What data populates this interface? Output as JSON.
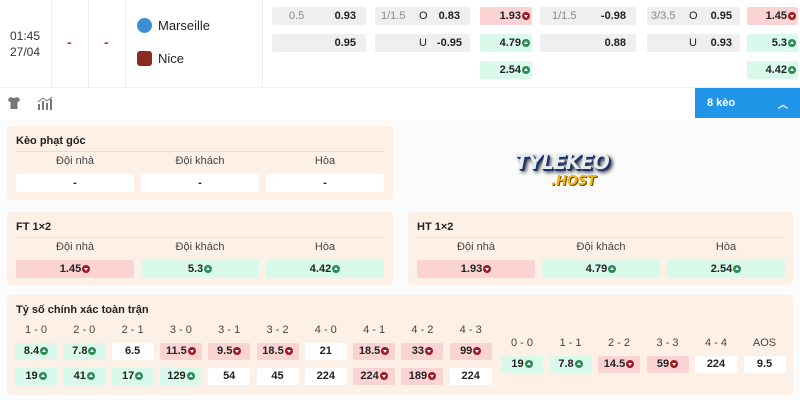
{
  "match": {
    "time": "01:45",
    "date": "27/04",
    "score_home": "-",
    "score_away": "-",
    "home": "Marseille",
    "away": "Nice"
  },
  "odds": {
    "ft_hdp": {
      "line": "0.5",
      "home": "0.93",
      "away": "0.95"
    },
    "ft_ou": {
      "line": "1/1.5",
      "over_label": "O",
      "over": "0.83",
      "under_label": "U",
      "under": "-0.95"
    },
    "ht_1x2": [
      {
        "v": "1.93",
        "c": "red",
        "t": "down"
      },
      {
        "v": "4.79",
        "c": "green",
        "t": "up"
      },
      {
        "v": "2.54",
        "c": "green",
        "t": "up"
      }
    ],
    "ht_hdp": {
      "line": "1/1.5",
      "home": "-0.98",
      "away": "0.88"
    },
    "ht_ou": {
      "line": "3/3.5",
      "over_label": "O",
      "over": "0.95",
      "under_label": "U",
      "under": "0.93"
    },
    "ft_1x2": [
      {
        "v": "1.45",
        "c": "red",
        "t": "down"
      },
      {
        "v": "5.3",
        "c": "green",
        "t": "up"
      },
      {
        "v": "4.42",
        "c": "green",
        "t": "up"
      }
    ]
  },
  "toolbar": {
    "keo_label": "8 kèo",
    "icons": [
      "shirt-icon",
      "stats-icon",
      "chevron-up-icon"
    ]
  },
  "logo": {
    "text": "TYLEKEO .HOST"
  },
  "panels": {
    "corner": {
      "title": "Kèo phạt góc",
      "cols": [
        {
          "h": "Đội nhà",
          "v": "-",
          "c": "white",
          "t": ""
        },
        {
          "h": "Đội khách",
          "v": "-",
          "c": "white",
          "t": ""
        },
        {
          "h": "Hòa",
          "v": "-",
          "c": "white",
          "t": ""
        }
      ]
    },
    "ft": {
      "title": "FT 1×2",
      "cols": [
        {
          "h": "Đội nhà",
          "v": "1.45",
          "c": "red",
          "t": "down"
        },
        {
          "h": "Đội khách",
          "v": "5.3",
          "c": "green",
          "t": "up"
        },
        {
          "h": "Hòa",
          "v": "4.42",
          "c": "green",
          "t": "up"
        }
      ]
    },
    "ht": {
      "title": "HT 1×2",
      "cols": [
        {
          "h": "Đội nhà",
          "v": "1.93",
          "c": "red",
          "t": "down"
        },
        {
          "h": "Đội khách",
          "v": "4.79",
          "c": "green",
          "t": "up"
        },
        {
          "h": "Hòa",
          "v": "2.54",
          "c": "green",
          "t": "up"
        }
      ]
    }
  },
  "correct_score": {
    "title": "Tỷ số chính xác toàn trận",
    "home": [
      {
        "h": "1 - 0",
        "a": {
          "v": "8.4",
          "c": "green",
          "t": "up"
        },
        "b": {
          "v": "19",
          "c": "green",
          "t": "up"
        }
      },
      {
        "h": "2 - 0",
        "a": {
          "v": "7.8",
          "c": "green",
          "t": "up"
        },
        "b": {
          "v": "41",
          "c": "green",
          "t": "up"
        }
      },
      {
        "h": "2 - 1",
        "a": {
          "v": "6.5",
          "c": "white",
          "t": ""
        },
        "b": {
          "v": "17",
          "c": "green",
          "t": "up"
        }
      },
      {
        "h": "3 - 0",
        "a": {
          "v": "11.5",
          "c": "red",
          "t": "down"
        },
        "b": {
          "v": "129",
          "c": "green",
          "t": "up"
        }
      },
      {
        "h": "3 - 1",
        "a": {
          "v": "9.5",
          "c": "red",
          "t": "down"
        },
        "b": {
          "v": "54",
          "c": "white",
          "t": ""
        }
      },
      {
        "h": "3 - 2",
        "a": {
          "v": "18.5",
          "c": "red",
          "t": "down"
        },
        "b": {
          "v": "45",
          "c": "white",
          "t": ""
        }
      },
      {
        "h": "4 - 0",
        "a": {
          "v": "21",
          "c": "white",
          "t": ""
        },
        "b": {
          "v": "224",
          "c": "white",
          "t": ""
        }
      },
      {
        "h": "4 - 1",
        "a": {
          "v": "18.5",
          "c": "red",
          "t": "down"
        },
        "b": {
          "v": "224",
          "c": "red",
          "t": "down"
        }
      },
      {
        "h": "4 - 2",
        "a": {
          "v": "33",
          "c": "red",
          "t": "down"
        },
        "b": {
          "v": "189",
          "c": "red",
          "t": "down"
        }
      },
      {
        "h": "4 - 3",
        "a": {
          "v": "99",
          "c": "red",
          "t": "down"
        },
        "b": {
          "v": "224",
          "c": "white",
          "t": ""
        }
      }
    ],
    "draw": [
      {
        "h": "0 - 0",
        "a": {
          "v": "19",
          "c": "green",
          "t": "up"
        }
      },
      {
        "h": "1 - 1",
        "a": {
          "v": "7.8",
          "c": "green",
          "t": "up"
        }
      },
      {
        "h": "2 - 2",
        "a": {
          "v": "14.5",
          "c": "red",
          "t": "down"
        }
      },
      {
        "h": "3 - 3",
        "a": {
          "v": "59",
          "c": "red",
          "t": "down"
        }
      },
      {
        "h": "4 - 4",
        "a": {
          "v": "224",
          "c": "white",
          "t": ""
        }
      },
      {
        "h": "AOS",
        "a": {
          "v": "9.5",
          "c": "white",
          "t": ""
        }
      }
    ]
  },
  "colors": {
    "red_bg": "#fbd3d3",
    "green_bg": "#d9f9ea",
    "accent": "#2196e8",
    "down": "#9b1c24",
    "up": "#2e8b57"
  }
}
